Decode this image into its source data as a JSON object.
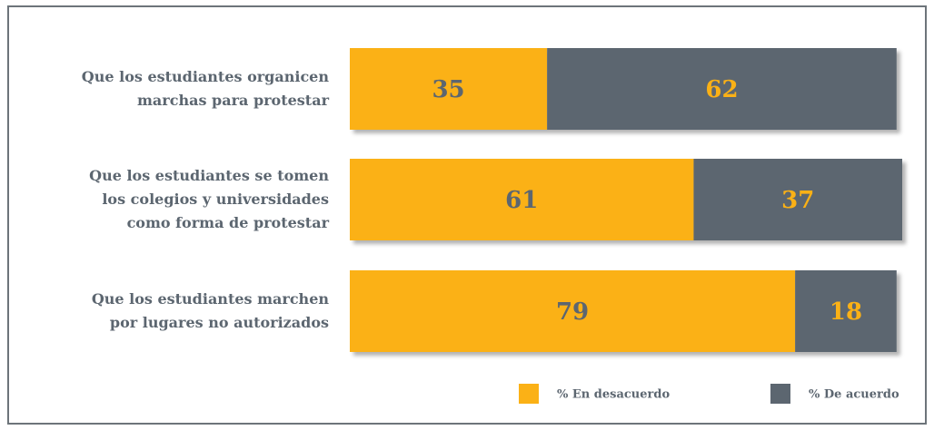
{
  "chart_data": {
    "type": "stacked-barh",
    "categories": [
      "Que los estudiantes organicen\nmarchas para protestar",
      "Que los estudiantes se tomen\nlos colegios y universidades\ncomo forma de protestar",
      "Que los estudiantes marchen\npor lugares no autorizados"
    ],
    "series": [
      {
        "name": "% En desacuerdo",
        "color": "#fbb116",
        "label_color": "#5c6670",
        "values": [
          35,
          61,
          79
        ]
      },
      {
        "name": "% De acuerdo",
        "color": "#5c6670",
        "label_color": "#fbb116",
        "values": [
          62,
          37,
          18
        ]
      }
    ],
    "xlim": [
      0,
      98
    ]
  }
}
